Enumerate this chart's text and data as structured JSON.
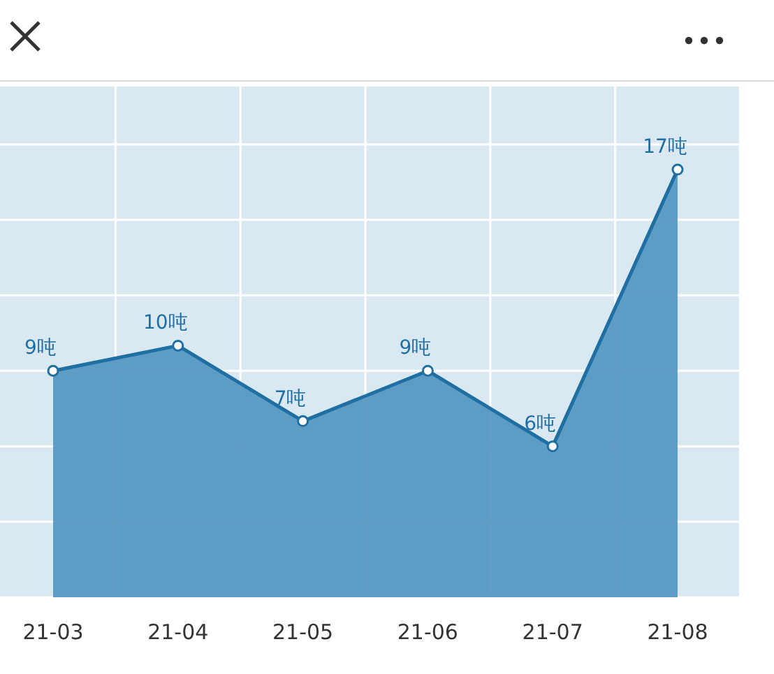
{
  "chart_data": {
    "type": "area",
    "categories": [
      "21-03",
      "21-04",
      "21-05",
      "21-06",
      "21-07",
      "21-08"
    ],
    "series": [
      {
        "color": "#1f6fa3",
        "values": [
          9,
          10,
          7,
          9,
          6,
          17
        ],
        "value_labels": [
          "9吨",
          "10吨",
          "7吨",
          "9吨",
          "6吨",
          "17吨"
        ]
      }
    ],
    "ylim": [
      0,
      20.3
    ],
    "yticks": [
      {
        "value": 0,
        "label": null
      },
      {
        "value": 3,
        "label": null
      },
      {
        "value": 6,
        "label": null
      },
      {
        "value": 9,
        "label": null
      },
      {
        "value": 12,
        "label": null
      },
      {
        "value": 15,
        "label": null
      },
      {
        "value": 18,
        "label": null
      }
    ],
    "grid": true,
    "marker": "circle",
    "tick_labels": "x"
  }
}
